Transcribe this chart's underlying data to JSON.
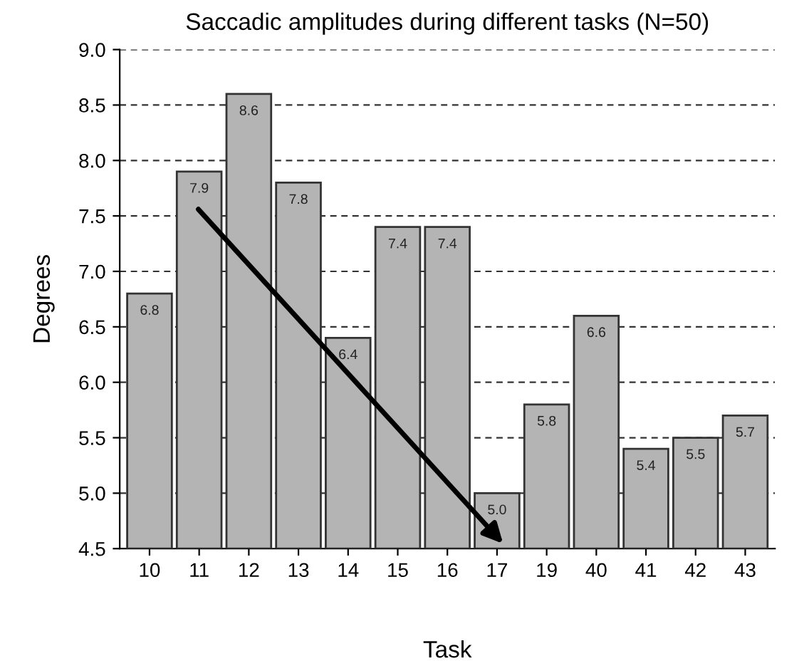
{
  "chart_data": {
    "type": "bar",
    "title": "Saccadic amplitudes during different tasks (N=50)",
    "xlabel": "Task",
    "ylabel": "Degrees",
    "categories": [
      "10",
      "11",
      "12",
      "13",
      "14",
      "15",
      "16",
      "17",
      "19",
      "40",
      "41",
      "42",
      "43"
    ],
    "values": [
      6.8,
      7.9,
      8.6,
      7.8,
      6.4,
      7.4,
      7.4,
      5.0,
      5.8,
      6.6,
      5.4,
      5.5,
      5.7
    ],
    "value_labels": [
      "6.8",
      "7.9",
      "8.6",
      "7.8",
      "6.4",
      "7.4",
      "7.4",
      "5.0",
      "5.8",
      "6.6",
      "5.4",
      "5.5",
      "5.7"
    ],
    "color": "#b4b4b4",
    "grid": "y",
    "line_style": "dashed",
    "ylim": [
      4.5,
      9.0
    ],
    "yticks": [
      4.5,
      {
        "value": 5,
        "label": "5.0"
      },
      5.5,
      {
        "value": 6,
        "label": "6.0"
      },
      6.5,
      {
        "value": 7,
        "label": "7.0"
      },
      7.5,
      {
        "value": 8,
        "label": "8.0"
      },
      8.5,
      {
        "value": 9,
        "label": "9.0"
      }
    ]
  }
}
